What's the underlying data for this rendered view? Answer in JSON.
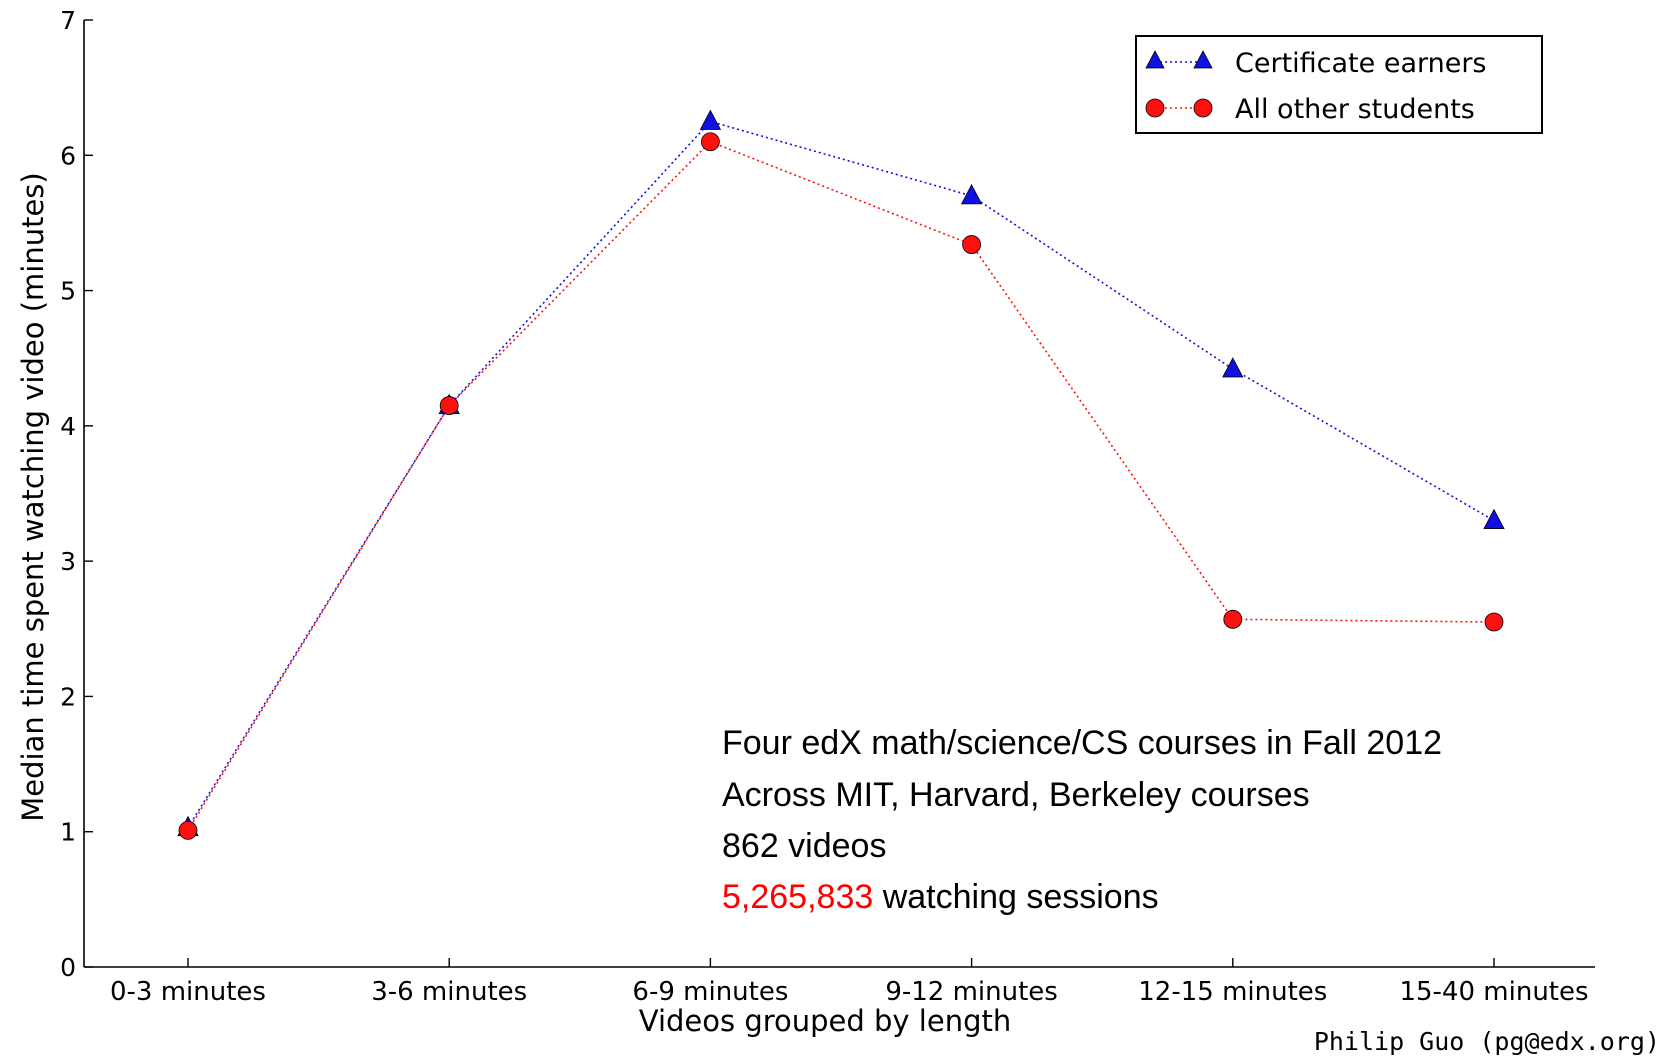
{
  "chart_data": {
    "type": "line",
    "xlabel": "Videos grouped by length",
    "ylabel": "Median time spent watching video (minutes)",
    "categories": [
      "0-3 minutes",
      "3-6 minutes",
      "6-9 minutes",
      "9-12 minutes",
      "12-15 minutes",
      "15-40 minutes"
    ],
    "ylim": [
      0,
      7
    ],
    "yticks": [
      0,
      1,
      2,
      3,
      4,
      5,
      6,
      7
    ],
    "grid": false,
    "legend_position": "top-right",
    "series": [
      {
        "name": "Certificate earners",
        "color": "#1010e0",
        "marker": "triangle",
        "line_style": "dotted",
        "values": [
          1.03,
          4.15,
          6.25,
          5.7,
          4.42,
          3.3
        ]
      },
      {
        "name": "All other students",
        "color": "#ff1010",
        "marker": "circle",
        "line_style": "dotted",
        "values": [
          1.01,
          4.15,
          6.1,
          5.34,
          2.57,
          2.55
        ]
      }
    ],
    "annotations": {
      "line1": "Four edX math/science/CS courses in Fall 2012",
      "line2": "Across MIT, Harvard, Berkeley courses",
      "line3": "862 videos",
      "line4_number": "5,265,833",
      "line4_rest": " watching sessions",
      "number_color": "#ff0000"
    },
    "credit": "Philip Guo (pg@edx.org)"
  }
}
